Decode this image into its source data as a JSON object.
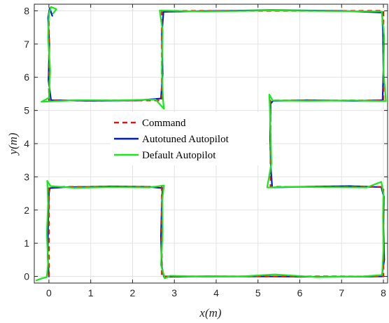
{
  "chart_data": {
    "type": "line",
    "xlabel": "x(m)",
    "ylabel": "y(m)",
    "xlim": [
      -0.35,
      8.1
    ],
    "ylim": [
      -0.2,
      8.2
    ],
    "xticks": [
      0,
      1,
      2,
      3,
      4,
      5,
      6,
      7,
      8
    ],
    "yticks": [
      0,
      1,
      2,
      3,
      4,
      5,
      6,
      7,
      8
    ],
    "grid": true,
    "legend_position": "center",
    "series": [
      {
        "name": "Command",
        "color": "#e3120b",
        "style": "dashed",
        "points": [
          [
            0,
            0
          ],
          [
            0,
            2.7
          ],
          [
            2.7,
            2.7
          ],
          [
            2.7,
            0
          ],
          [
            8,
            0
          ],
          [
            8,
            2.7
          ],
          [
            5.3,
            2.7
          ],
          [
            5.3,
            5.3
          ],
          [
            8,
            5.3
          ],
          [
            8,
            8
          ],
          [
            2.7,
            8
          ],
          [
            2.7,
            5.3
          ],
          [
            0,
            5.3
          ],
          [
            0,
            8
          ]
        ]
      },
      {
        "name": "Autotuned Autopilot",
        "color": "#0016d9",
        "style": "solid",
        "points": [
          [
            0,
            0
          ],
          [
            -0.03,
            0.6
          ],
          [
            -0.02,
            1.5
          ],
          [
            0,
            2.5
          ],
          [
            0.02,
            2.66
          ],
          [
            0.4,
            2.69
          ],
          [
            1.5,
            2.71
          ],
          [
            2.4,
            2.7
          ],
          [
            2.72,
            2.66
          ],
          [
            2.7,
            2.2
          ],
          [
            2.68,
            1.2
          ],
          [
            2.7,
            0.3
          ],
          [
            2.75,
            -0.01
          ],
          [
            3.5,
            0.0
          ],
          [
            5,
            0.0
          ],
          [
            6.5,
            -0.01
          ],
          [
            7.96,
            0.0
          ],
          [
            8.02,
            0.5
          ],
          [
            8.0,
            1.5
          ],
          [
            8.01,
            2.4
          ],
          [
            7.95,
            2.69
          ],
          [
            7.2,
            2.72
          ],
          [
            6,
            2.7
          ],
          [
            5.34,
            2.68
          ],
          [
            5.31,
            3.2
          ],
          [
            5.29,
            4.2
          ],
          [
            5.3,
            5.2
          ],
          [
            5.36,
            5.29
          ],
          [
            6.2,
            5.31
          ],
          [
            7.3,
            5.29
          ],
          [
            7.98,
            5.31
          ],
          [
            8.0,
            6.2
          ],
          [
            7.99,
            7.3
          ],
          [
            7.97,
            7.95
          ],
          [
            7.0,
            8.0
          ],
          [
            5.3,
            8.02
          ],
          [
            3.5,
            7.99
          ],
          [
            2.74,
            7.97
          ],
          [
            2.7,
            7.3
          ],
          [
            2.72,
            6.1
          ],
          [
            2.68,
            5.36
          ],
          [
            2.1,
            5.3
          ],
          [
            1,
            5.29
          ],
          [
            0.05,
            5.31
          ],
          [
            -0.01,
            5.9
          ],
          [
            0.01,
            7.0
          ],
          [
            -0.02,
            7.8
          ],
          [
            0.02,
            8.08
          ],
          [
            0.08,
            7.85
          ]
        ]
      },
      {
        "name": "Default Autopilot",
        "color": "#17e81a",
        "style": "solid",
        "points": [
          [
            -0.3,
            -0.12
          ],
          [
            -0.15,
            -0.05
          ],
          [
            -0.05,
            -0.02
          ],
          [
            -0.02,
            0.4
          ],
          [
            -0.05,
            1.3
          ],
          [
            -0.02,
            2.2
          ],
          [
            -0.04,
            2.88
          ],
          [
            0.04,
            2.72
          ],
          [
            0.6,
            2.67
          ],
          [
            1.5,
            2.69
          ],
          [
            2.4,
            2.68
          ],
          [
            2.75,
            2.74
          ],
          [
            2.71,
            2.3
          ],
          [
            2.72,
            1.3
          ],
          [
            2.68,
            0.35
          ],
          [
            2.77,
            -0.06
          ],
          [
            2.9,
            0.02
          ],
          [
            3.8,
            -0.01
          ],
          [
            4.6,
            0.0
          ],
          [
            5.4,
            0.06
          ],
          [
            6.4,
            -0.02
          ],
          [
            7.5,
            0.0
          ],
          [
            7.97,
            0.04
          ],
          [
            8.0,
            0.8
          ],
          [
            7.99,
            1.8
          ],
          [
            8.0,
            2.5
          ],
          [
            7.95,
            2.85
          ],
          [
            7.6,
            2.68
          ],
          [
            6.5,
            2.69
          ],
          [
            5.7,
            2.7
          ],
          [
            5.3,
            2.68
          ],
          [
            5.22,
            2.68
          ],
          [
            5.32,
            3.4
          ],
          [
            5.3,
            4.4
          ],
          [
            5.28,
            5.2
          ],
          [
            5.27,
            5.48
          ],
          [
            5.35,
            5.3
          ],
          [
            6.2,
            5.29
          ],
          [
            7.3,
            5.3
          ],
          [
            8.06,
            5.28
          ],
          [
            8.0,
            6.2
          ],
          [
            8.02,
            7.2
          ],
          [
            7.96,
            7.98
          ],
          [
            7.0,
            7.99
          ],
          [
            5.3,
            8.01
          ],
          [
            3.7,
            7.98
          ],
          [
            2.65,
            8.01
          ],
          [
            2.72,
            7.4
          ],
          [
            2.7,
            6.2
          ],
          [
            2.73,
            5.3
          ],
          [
            2.75,
            5.05
          ],
          [
            2.55,
            5.33
          ],
          [
            1.6,
            5.3
          ],
          [
            0.7,
            5.31
          ],
          [
            -0.18,
            5.26
          ],
          [
            0.0,
            5.38
          ],
          [
            0.03,
            6.2
          ],
          [
            -0.02,
            7.2
          ],
          [
            0.0,
            7.9
          ],
          [
            0.05,
            8.12
          ],
          [
            0.18,
            8.05
          ],
          [
            0.1,
            7.92
          ]
        ]
      }
    ]
  }
}
